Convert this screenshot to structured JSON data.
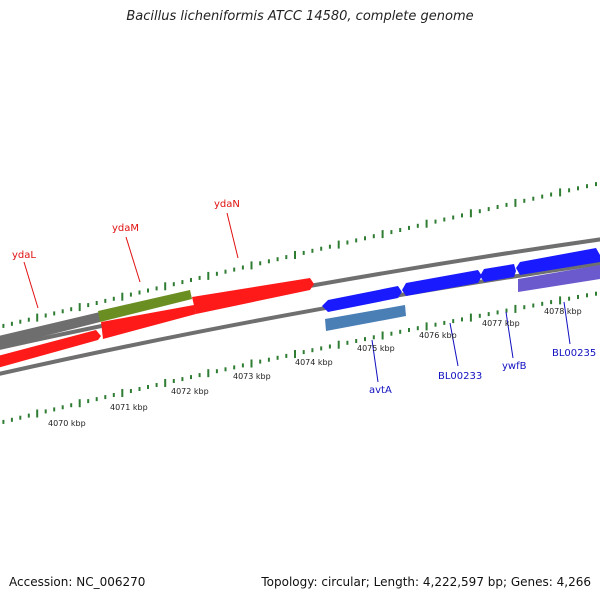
{
  "title": "Bacillus licheniformis ATCC 14580, complete genome",
  "footer": {
    "accession": "Accession: NC_006270",
    "stats": "Topology: circular; Length: 4,222,597 bp; Genes: 4,266"
  },
  "colors": {
    "forward_gene": "#ff0000",
    "reverse_gene": "#0000ff",
    "backbone": "#888888",
    "tick": "#2e7d32",
    "label_red": "#e01010",
    "label_blue": "#1010c0"
  },
  "scale_labels": [
    "4070 kbp",
    "4071 kbp",
    "4072 kbp",
    "4073 kbp",
    "4074 kbp",
    "4075 kbp",
    "4076 kbp",
    "4077 kbp",
    "4078 kbp"
  ],
  "gene_labels": {
    "ydaL": "ydaL",
    "ydaM": "ydaM",
    "ydaN": "ydaN",
    "avtA": "avtA",
    "BL00233": "BL00233",
    "ywfB": "ywfB",
    "BL00235": "BL00235"
  }
}
